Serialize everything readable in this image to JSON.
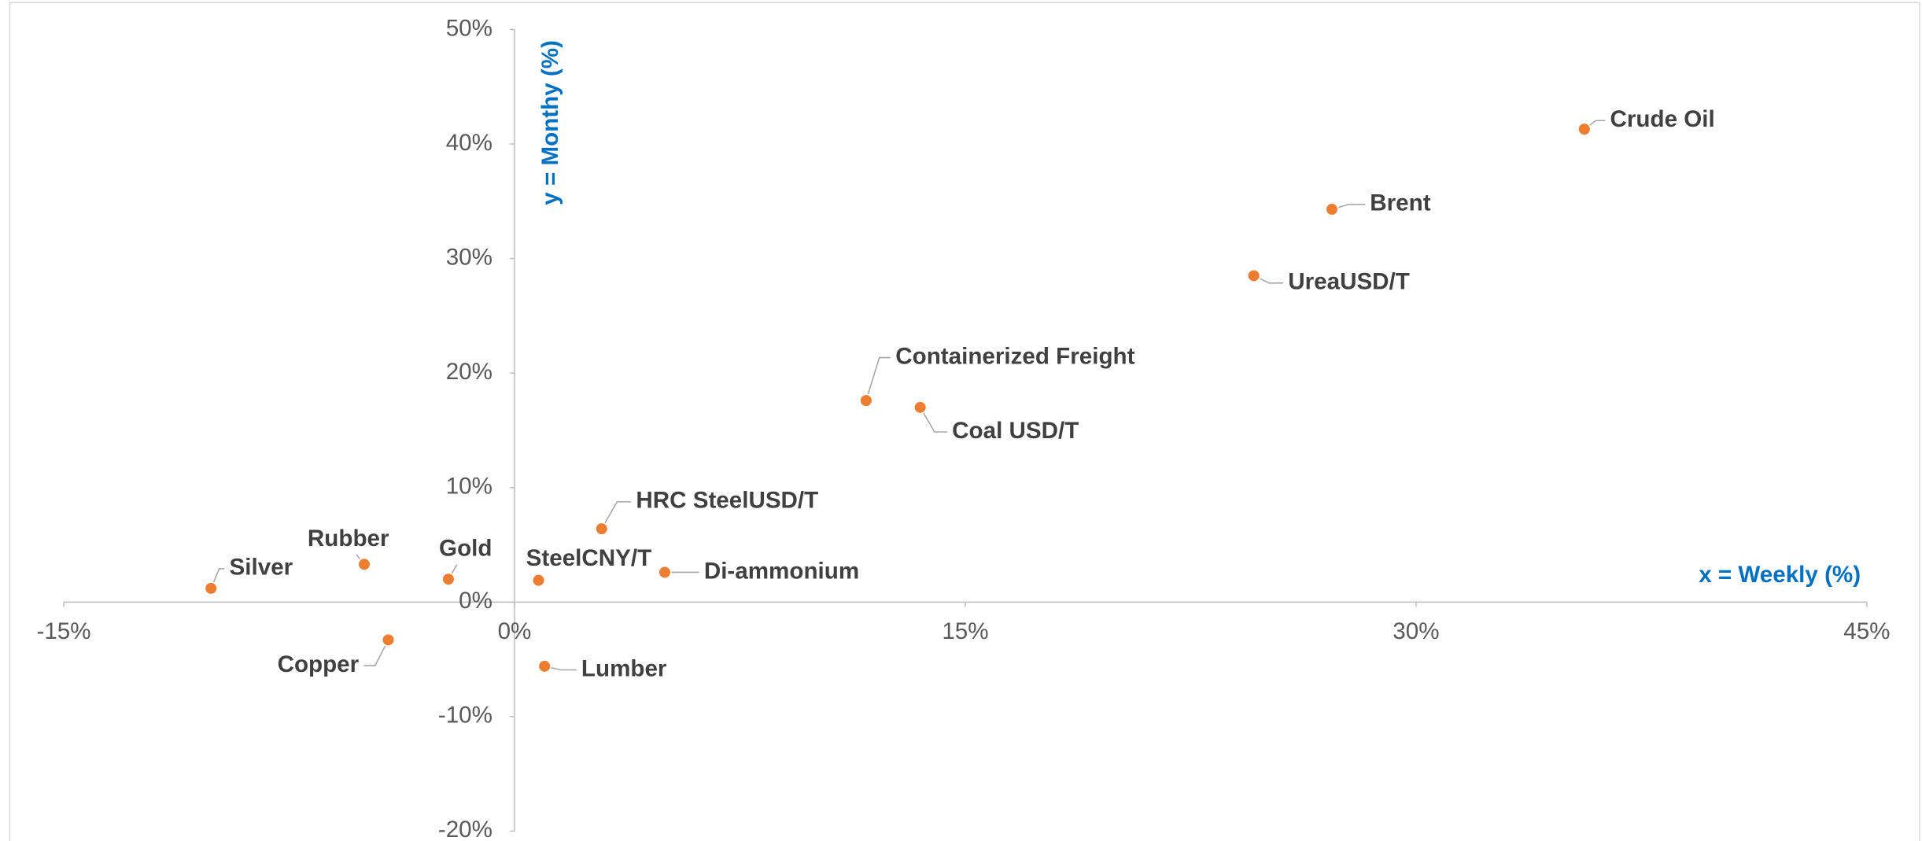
{
  "chart_data": {
    "type": "scatter",
    "x_label": "x = Weekly (%)",
    "y_label": "y = Monthy (%)",
    "labels": [
      "Crude Oil",
      "Brent",
      "UreaUSD/T",
      "Containerized Freight",
      "Coal USD/T",
      "HRC SteelUSD/T",
      "SteelCNY/T",
      "Di-ammonium",
      "Gold",
      "Rubber",
      "Silver",
      "Copper",
      "Lumber"
    ],
    "x": [
      35.6,
      27.2,
      24.6,
      11.7,
      13.5,
      2.9,
      0.8,
      5.0,
      -2.2,
      -5.0,
      -10.1,
      -4.2,
      1.0
    ],
    "values": [
      41.3,
      34.3,
      28.5,
      17.6,
      17.0,
      6.4,
      1.9,
      2.6,
      2.0,
      3.3,
      1.2,
      -3.3,
      -5.6
    ],
    "color": "#ed7d31",
    "xlim": [
      -15,
      45
    ],
    "xticks": [
      {
        "value": -15,
        "label": "-15%"
      },
      {
        "value": 0,
        "label": "0%"
      },
      {
        "value": 15,
        "label": "15%"
      },
      {
        "value": 30,
        "label": "30%"
      },
      {
        "value": 45,
        "label": "45%"
      }
    ],
    "ylim": [
      -20,
      50
    ],
    "yticks": [
      {
        "value": -20,
        "label": "-20%"
      },
      {
        "value": -10,
        "label": "-10%"
      },
      {
        "value": 0,
        "label": "0%"
      },
      {
        "value": 10,
        "label": "10%"
      },
      {
        "value": 20,
        "label": "20%"
      },
      {
        "value": 30,
        "label": "30%"
      },
      {
        "value": 40,
        "label": "40%"
      },
      {
        "value": 50,
        "label": "50%"
      }
    ]
  }
}
